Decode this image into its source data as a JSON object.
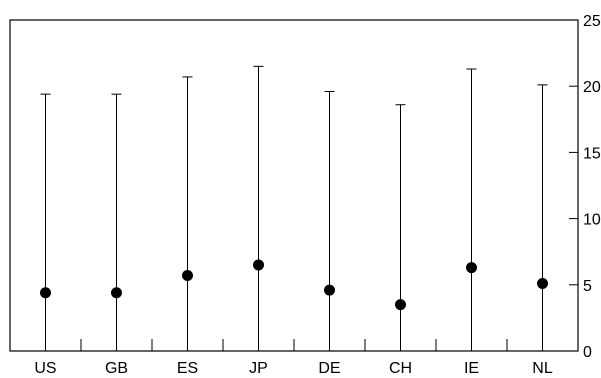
{
  "chart_data": {
    "type": "scatter",
    "title": "",
    "xlabel": "",
    "ylabel": "",
    "categories": [
      "US",
      "GB",
      "ES",
      "JP",
      "DE",
      "CH",
      "IE",
      "NL"
    ],
    "series": [
      {
        "values": [
          4.4,
          4.4,
          5.7,
          6.5,
          4.6,
          3.5,
          6.3,
          5.1
        ],
        "error_lower": [
          0,
          0,
          0,
          0,
          0,
          0,
          0,
          0
        ],
        "error_upper": [
          19.4,
          19.4,
          20.7,
          21.5,
          19.6,
          18.6,
          21.3,
          20.1
        ]
      }
    ],
    "yticks": [
      "0",
      "5",
      "10",
      "15",
      "20",
      "25"
    ],
    "ylim": [
      0,
      25
    ],
    "y_axis_side": "right",
    "grid": false,
    "legend": "none",
    "colors": {
      "marker": "#000000",
      "errorbar": "#000000",
      "frame": "#000000"
    }
  }
}
